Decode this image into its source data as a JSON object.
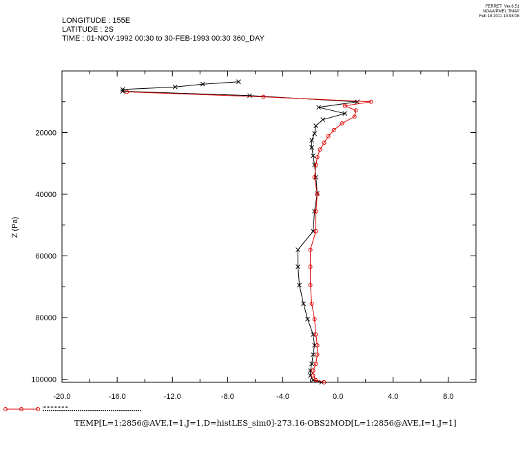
{
  "header": {
    "longitude": "LONGITUDE : 155E",
    "latitude": "LATITUDE : 2S",
    "time": "TIME : 01-NOV-1992 00:30 to 30-FEB-1993 00:30 360_DAY"
  },
  "stamp": {
    "line1": "FERRET  Ver.6.51",
    "line2": "NOAA/PMEL TMAP",
    "line3": "Feb 18 2011 13:08:08"
  },
  "chart_data": {
    "type": "line",
    "ylabel": "Z (Pa)",
    "xlabel": "TEMP[L=1:2856@AVE,I=1,J=1,D=histLES_sim0]-273.16-OBS2MOD[L=1:2856@AVE,I=1,J=1]",
    "xlim": [
      -20,
      10
    ],
    "ylim": [
      101000,
      0
    ],
    "y_axis_inverted": true,
    "x_ticks": [
      "-20.0",
      "-16.0",
      "-12.0",
      "-8.0",
      "-4.0",
      "0.0",
      "4.0",
      "8.0"
    ],
    "x_tick_values": [
      -20,
      -16,
      -12,
      -8,
      -4,
      0,
      4,
      8
    ],
    "y_ticks": [
      "20000",
      "40000",
      "60000",
      "80000",
      "100000"
    ],
    "y_tick_values": [
      20000,
      40000,
      60000,
      80000,
      100000
    ],
    "legend": {
      "placement": "bottom-left",
      "colors": [
        "#dd0000"
      ]
    },
    "series": [
      {
        "color": "#000000",
        "marker": "x",
        "points": [
          [
            -7.2,
            3500
          ],
          [
            -9.8,
            4300
          ],
          [
            -11.8,
            5200
          ],
          [
            -15.6,
            6000
          ],
          [
            -15.6,
            6600
          ],
          [
            -6.4,
            8000
          ],
          [
            1.4,
            10000
          ],
          [
            -1.4,
            11800
          ],
          [
            0.5,
            13800
          ],
          [
            -1.1,
            15800
          ],
          [
            -1.6,
            17800
          ],
          [
            -1.7,
            20300
          ],
          [
            -1.9,
            22500
          ],
          [
            -1.9,
            24800
          ],
          [
            -1.8,
            27500
          ],
          [
            -1.7,
            30500
          ],
          [
            -1.6,
            34500
          ],
          [
            -1.5,
            39700
          ],
          [
            -1.7,
            45500
          ],
          [
            -1.8,
            52000
          ],
          [
            -2.9,
            58000
          ],
          [
            -2.9,
            63500
          ],
          [
            -2.8,
            69500
          ],
          [
            -2.5,
            75500
          ],
          [
            -2.2,
            80500
          ],
          [
            -1.8,
            85500
          ],
          [
            -1.7,
            89000
          ],
          [
            -1.8,
            92000
          ],
          [
            -1.9,
            95000
          ],
          [
            -2.0,
            97200
          ],
          [
            -2.0,
            98800
          ],
          [
            -1.8,
            100300
          ],
          [
            -1.2,
            101000
          ]
        ]
      },
      {
        "color": "#dd0000",
        "marker": "o",
        "points": [
          [
            -15.3,
            6800
          ],
          [
            -5.4,
            8400
          ],
          [
            2.4,
            10000
          ],
          [
            0.5,
            11300
          ],
          [
            1.3,
            12800
          ],
          [
            1.2,
            14800
          ],
          [
            0.3,
            17000
          ],
          [
            -0.3,
            19200
          ],
          [
            -0.7,
            21200
          ],
          [
            -1.0,
            23300
          ],
          [
            -1.3,
            25500
          ],
          [
            -1.5,
            28000
          ],
          [
            -1.6,
            30500
          ],
          [
            -1.7,
            34500
          ],
          [
            -1.5,
            40000
          ],
          [
            -1.6,
            45500
          ],
          [
            -1.6,
            52000
          ],
          [
            -2.0,
            58000
          ],
          [
            -2.0,
            63500
          ],
          [
            -2.0,
            69500
          ],
          [
            -1.9,
            75500
          ],
          [
            -1.7,
            80500
          ],
          [
            -1.6,
            85500
          ],
          [
            -1.5,
            89000
          ],
          [
            -1.5,
            92000
          ],
          [
            -1.6,
            95000
          ],
          [
            -1.8,
            97200
          ],
          [
            -1.8,
            98800
          ],
          [
            -1.6,
            100300
          ],
          [
            -1.0,
            101000
          ]
        ]
      }
    ]
  }
}
